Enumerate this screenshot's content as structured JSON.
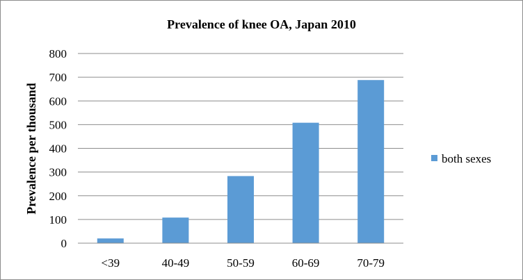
{
  "chart_data": {
    "type": "bar",
    "title": "Prevalence of knee OA, Japan 2010",
    "xlabel": "",
    "ylabel": "Prevalence per thousand",
    "categories": [
      "<39",
      "40-49",
      "50-59",
      "60-69",
      "70-79"
    ],
    "series": [
      {
        "name": "both sexes",
        "values": [
          20,
          108,
          283,
          508,
          688
        ],
        "color": "#5b9bd5"
      }
    ],
    "ylim": [
      0,
      800
    ],
    "yticks": [
      0,
      100,
      200,
      300,
      400,
      500,
      600,
      700,
      800
    ],
    "grid": true,
    "legend_position": "right"
  }
}
